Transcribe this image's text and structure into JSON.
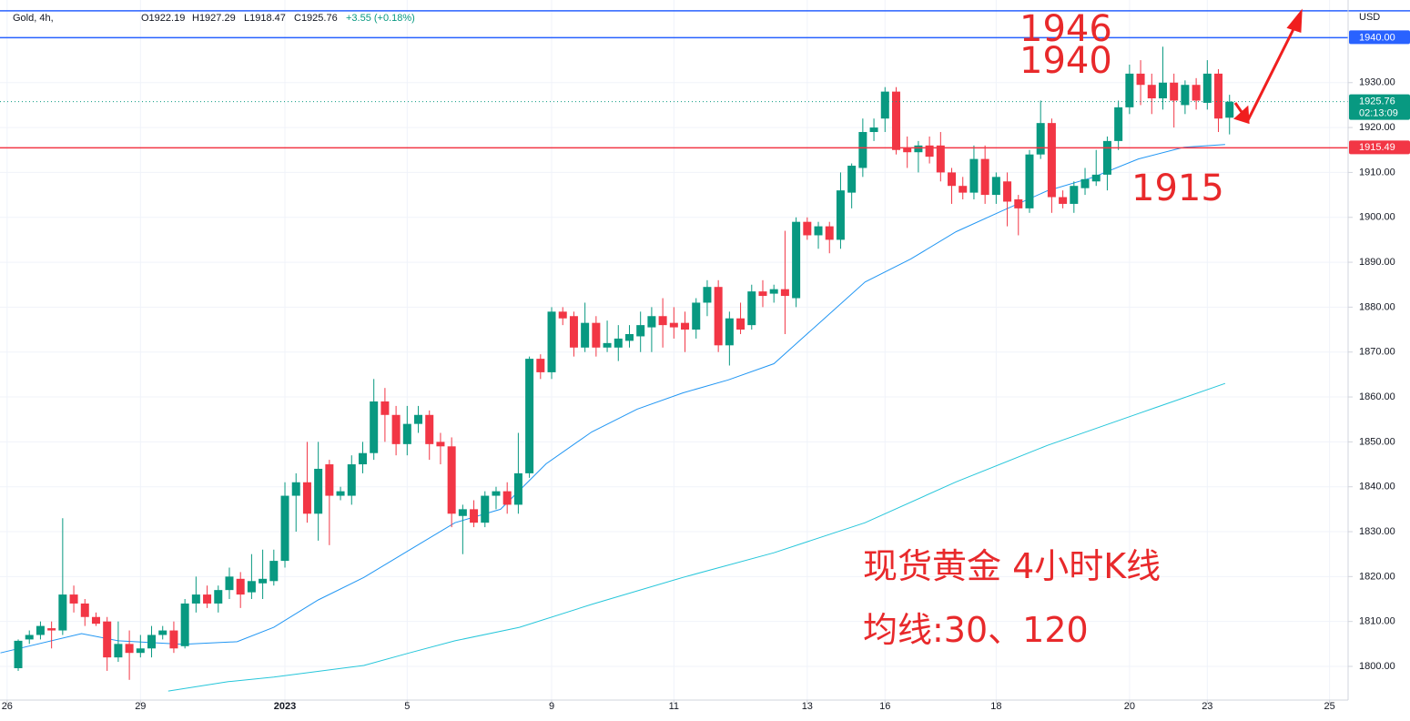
{
  "chart_data": {
    "type": "candlestick",
    "header": {
      "symbol": "Gold, 4h,",
      "ohlc": [
        "O1922.19",
        "H1927.29",
        "L1918.47",
        "C1925.76",
        "+3.55 (+0.18%)"
      ]
    },
    "currency": "USD",
    "annotations": [
      "1946",
      "1940",
      "1915",
      "现货黄金 4小时K线",
      "均线:30、120"
    ],
    "up_color": "#089981",
    "down_color": "#f23645",
    "x": [
      0,
      1,
      2,
      3,
      4,
      5,
      6,
      7,
      8,
      9,
      10,
      11,
      12,
      13,
      14,
      15,
      16,
      17,
      18,
      19,
      20,
      21,
      22,
      23,
      24,
      25,
      26,
      27,
      28,
      29,
      30,
      31,
      32,
      33,
      34,
      35,
      36,
      37,
      38,
      39,
      40,
      41,
      42,
      43,
      44,
      45,
      46,
      47,
      48,
      49,
      50,
      51,
      52,
      53,
      54,
      55,
      56,
      57,
      58,
      59,
      60,
      61,
      62,
      63,
      64,
      65,
      66,
      67,
      68,
      69,
      70,
      71,
      72,
      73,
      74,
      75,
      76,
      77,
      78,
      79,
      80,
      81,
      82,
      83,
      84,
      85,
      86,
      87,
      88,
      89,
      90,
      91,
      92,
      93,
      94,
      95,
      96,
      97,
      98,
      99,
      100,
      101,
      102,
      103,
      104,
      105,
      106,
      107,
      108,
      109
    ],
    "open": [
      1799.6,
      1806,
      1807,
      1808.5,
      1808,
      1816,
      1814,
      1811,
      1810,
      1802,
      1805,
      1803,
      1804,
      1807,
      1808,
      1804.5,
      1814,
      1816,
      1814,
      1817,
      1819.5,
      1816.5,
      1818.5,
      1819,
      1823.5,
      1838,
      1841,
      1834,
      1845,
      1838,
      1838,
      1845,
      1847.5,
      1859,
      1856,
      1849.5,
      1854,
      1856,
      1850,
      1849,
      1833.5,
      1835,
      1832,
      1838,
      1839,
      1836,
      1843,
      1868.5,
      1865.5,
      1879,
      1878,
      1871,
      1876.5,
      1871,
      1871,
      1872.5,
      1873.5,
      1875.5,
      1878,
      1876.5,
      1876.5,
      1875,
      1881,
      1884.5,
      1871.5,
      1877.5,
      1876,
      1883.5,
      1883,
      1884,
      1882,
      1899,
      1896,
      1898,
      1895,
      1905.5,
      1911,
      1919,
      1922,
      1928,
      1915.5,
      1914.5,
      1916,
      1916,
      1910,
      1907,
      1905.5,
      1913,
      1905,
      1908,
      1904,
      1902,
      1914,
      1921,
      1904.5,
      1903,
      1906.5,
      1908,
      1909.5,
      1917,
      1924.5,
      1932,
      1929.5,
      1926.5,
      1930,
      1925,
      1929.5,
      1925.5,
      1932,
      1922.19
    ],
    "high": [
      1806,
      1808,
      1810,
      1810,
      1833,
      1818,
      1815,
      1812,
      1811,
      1810,
      1808,
      1807,
      1809,
      1809,
      1810,
      1815,
      1820,
      1818,
      1818,
      1822,
      1821,
      1825,
      1826,
      1826,
      1841,
      1843,
      1850,
      1850,
      1846,
      1840,
      1847,
      1850,
      1864,
      1862,
      1858,
      1858,
      1858,
      1857,
      1852,
      1851,
      1836,
      1837,
      1839,
      1840,
      1841,
      1852,
      1869,
      1869.5,
      1880,
      1880,
      1879,
      1881,
      1878,
      1877,
      1876,
      1876,
      1879,
      1880,
      1882,
      1880,
      1879,
      1882,
      1886,
      1886,
      1879,
      1881,
      1885,
      1886,
      1885,
      1897,
      1900,
      1900,
      1899,
      1899,
      1910,
      1912,
      1922,
      1922,
      1929,
      1929,
      1918,
      1917,
      1918,
      1919,
      1911,
      1909,
      1916,
      1916,
      1910,
      1910,
      1905,
      1915,
      1926,
      1922,
      1906,
      1908,
      1911,
      1915,
      1918,
      1926,
      1934,
      1935,
      1932,
      1938,
      1932,
      1930.5,
      1931,
      1935,
      1933,
      1927.29
    ],
    "low": [
      1799,
      1805,
      1806,
      1804,
      1807,
      1812,
      1809,
      1809,
      1799,
      1801,
      1797,
      1802,
      1802,
      1806,
      1803,
      1804,
      1812,
      1813,
      1812,
      1815,
      1813,
      1815,
      1815,
      1818,
      1822,
      1830,
      1832,
      1828,
      1827,
      1837,
      1836,
      1843,
      1846,
      1850,
      1847,
      1847,
      1852,
      1846,
      1845,
      1831,
      1825,
      1831,
      1831,
      1835,
      1834,
      1834,
      1842,
      1864,
      1864,
      1876,
      1869,
      1870,
      1869,
      1870,
      1868,
      1871,
      1870,
      1870,
      1871,
      1873,
      1870,
      1873,
      1878,
      1870,
      1867,
      1874,
      1875,
      1880,
      1881,
      1874,
      1880,
      1895,
      1893,
      1892,
      1893,
      1902,
      1909,
      1917,
      1919,
      1914,
      1911,
      1910,
      1912,
      1908,
      1903,
      1904,
      1904,
      1903,
      1903,
      1898,
      1896,
      1901,
      1913,
      1901,
      1902,
      1901,
      1905,
      1907,
      1906,
      1915,
      1923,
      1925,
      1923,
      1924,
      1920,
      1923,
      1924,
      1924,
      1919,
      1918.47
    ],
    "close": [
      1805.7,
      1807,
      1809,
      1808,
      1816,
      1814,
      1811,
      1809.5,
      1802,
      1805,
      1803,
      1804,
      1807,
      1808,
      1804,
      1814,
      1816,
      1814,
      1817,
      1820,
      1816,
      1819,
      1819.5,
      1823.5,
      1838,
      1841,
      1834,
      1844,
      1838,
      1839,
      1845,
      1847.5,
      1859,
      1856,
      1849.5,
      1854,
      1856,
      1849.5,
      1849,
      1834,
      1835,
      1832,
      1838,
      1839,
      1836,
      1843,
      1868.5,
      1865.5,
      1879,
      1877.5,
      1871,
      1876.5,
      1871,
      1872,
      1873,
      1874,
      1876,
      1878,
      1876,
      1875.5,
      1875,
      1881,
      1884.5,
      1871.5,
      1877.5,
      1875,
      1883.5,
      1882.5,
      1884,
      1882.5,
      1899,
      1896,
      1898,
      1895,
      1906,
      1911.5,
      1919,
      1920,
      1928,
      1915,
      1914.5,
      1916,
      1913.5,
      1910,
      1907,
      1905.5,
      1913,
      1905,
      1909,
      1903.5,
      1902,
      1914,
      1921,
      1904.5,
      1903,
      1907,
      1908.5,
      1909.5,
      1917,
      1924.5,
      1932,
      1929.5,
      1926.5,
      1930,
      1926,
      1929.5,
      1926,
      1932,
      1922,
      1925.76
    ],
    "lines": [
      {
        "color": "#2196f3",
        "x": [
          -1.6,
          5.7,
          9,
          14.8,
          19.7,
          23,
          27,
          31.1,
          35.2,
          39.3,
          43.4,
          47.5,
          51.6,
          55.7,
          59.8,
          63.9,
          68,
          72.1,
          76.2,
          80.3,
          84.4,
          88.5,
          92.6,
          96.7,
          100.8,
          104.9,
          108.6
        ],
        "values": [
          1803,
          1807.3,
          1805.7,
          1804.9,
          1805.5,
          1808.7,
          1814.8,
          1819.8,
          1825.9,
          1832,
          1835,
          1845.1,
          1852.2,
          1857.3,
          1860.9,
          1863.8,
          1867.4,
          1876.5,
          1885.6,
          1890.7,
          1896.8,
          1901.4,
          1905.9,
          1908.9,
          1913,
          1915.6,
          1916.2
        ]
      },
      {
        "color": "#26c6da",
        "x": [
          13.5,
          18.9,
          23,
          31.1,
          35.2,
          39.3,
          45.1,
          51.6,
          59.8,
          68,
          76.2,
          84.4,
          92.6,
          100.8,
          108.6
        ],
        "values": [
          1794.5,
          1796.6,
          1797.6,
          1800.2,
          1803,
          1805.7,
          1808.7,
          1813.8,
          1819.8,
          1825.3,
          1832,
          1841.1,
          1849.2,
          1856.3,
          1863
        ]
      }
    ],
    "hlines": [
      {
        "value": 1946,
        "color": "#2962ff"
      },
      {
        "value": 1940,
        "label": "1940.00",
        "color": "#2962ff"
      },
      {
        "value": 1925.76,
        "label": "1925.76",
        "sublabel": "02:13:09",
        "color": "#089981",
        "dashed": true
      },
      {
        "value": 1915.49,
        "label": "1915.49",
        "color": "#f23645"
      }
    ],
    "xlim": [
      -1.64,
      119.67
    ],
    "ylim": [
      1792.5,
      1948.4
    ],
    "xticks": [
      {
        "value": -1,
        "label": "26"
      },
      {
        "value": 11,
        "label": "29"
      },
      {
        "value": 24,
        "label": "2023"
      },
      {
        "value": 35,
        "label": "5"
      },
      {
        "value": 48,
        "label": "9"
      },
      {
        "value": 59,
        "label": "11"
      },
      {
        "value": 71,
        "label": "13"
      },
      {
        "value": 78,
        "label": "16"
      },
      {
        "value": 88,
        "label": "18"
      },
      {
        "value": 100,
        "label": "20"
      },
      {
        "value": 107,
        "label": "23"
      },
      {
        "value": 118,
        "label": "25"
      }
    ],
    "yticks": [
      {
        "value": 1800,
        "label": "1800.00"
      },
      {
        "value": 1810,
        "label": "1810.00"
      },
      {
        "value": 1820,
        "label": "1820.00"
      },
      {
        "value": 1830,
        "label": "1830.00"
      },
      {
        "value": 1840,
        "label": "1840.00"
      },
      {
        "value": 1850,
        "label": "1850.00"
      },
      {
        "value": 1860,
        "label": "1860.00"
      },
      {
        "value": 1870,
        "label": "1870.00"
      },
      {
        "value": 1880,
        "label": "1880.00"
      },
      {
        "value": 1890,
        "label": "1890.00"
      },
      {
        "value": 1900,
        "label": "1900.00"
      },
      {
        "value": 1910,
        "label": "1910.00"
      },
      {
        "value": 1920,
        "label": "1920.00"
      },
      {
        "value": 1930,
        "label": "1930.00"
      }
    ],
    "grid": true
  }
}
